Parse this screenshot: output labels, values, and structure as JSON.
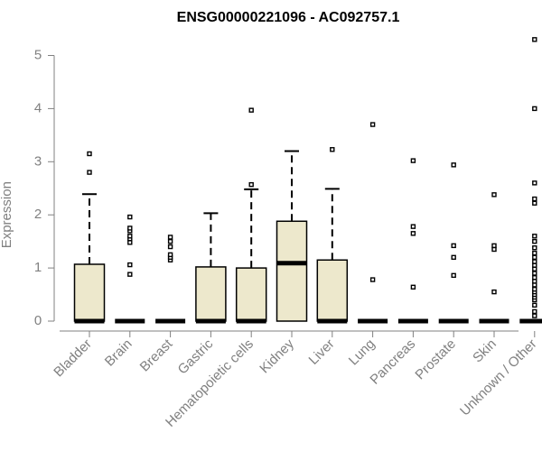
{
  "chart_data": {
    "type": "boxplot",
    "title": "ENSG00000221096 - AC092757.1",
    "ylabel": "Expression",
    "xlabel": "",
    "ylim": [
      0,
      5.3
    ],
    "yticks": [
      0,
      1,
      2,
      3,
      4,
      5
    ],
    "box_fill": "#ede8cc",
    "stroke_color": "#000000",
    "axis_color": "#808080",
    "categories": [
      "Bladder",
      "Brain",
      "Breast",
      "Gastric",
      "Hematopoietic cells",
      "Kidney",
      "Liver",
      "Lung",
      "Pancreas",
      "Prostate",
      "Skin",
      "Unknown / Other"
    ],
    "boxes": [
      {
        "q1": 0,
        "median": 0,
        "q3": 1.07,
        "whisker_low": 0,
        "whisker_high": 2.39,
        "outliers": [
          2.8,
          3.15
        ]
      },
      {
        "q1": 0,
        "median": 0,
        "q3": 0,
        "whisker_low": 0,
        "whisker_high": 0,
        "outliers": [
          0.88,
          1.06,
          1.48,
          1.55,
          1.6,
          1.7,
          1.75,
          1.96
        ]
      },
      {
        "q1": 0,
        "median": 0,
        "q3": 0,
        "whisker_low": 0,
        "whisker_high": 0,
        "outliers": [
          1.15,
          1.2,
          1.25,
          1.4,
          1.5,
          1.58
        ]
      },
      {
        "q1": 0,
        "median": 0,
        "q3": 1.02,
        "whisker_low": 0,
        "whisker_high": 2.03,
        "outliers": []
      },
      {
        "q1": 0,
        "median": 0,
        "q3": 1.0,
        "whisker_low": 0,
        "whisker_high": 2.48,
        "outliers": [
          2.57,
          3.97
        ]
      },
      {
        "q1": 0,
        "median": 1.09,
        "q3": 1.88,
        "whisker_low": 0,
        "whisker_high": 3.2,
        "outliers": []
      },
      {
        "q1": 0,
        "median": 0,
        "q3": 1.15,
        "whisker_low": 0,
        "whisker_high": 2.49,
        "outliers": [
          3.23
        ]
      },
      {
        "q1": 0,
        "median": 0,
        "q3": 0,
        "whisker_low": 0,
        "whisker_high": 0,
        "outliers": [
          0.78,
          3.7
        ]
      },
      {
        "q1": 0,
        "median": 0,
        "q3": 0,
        "whisker_low": 0,
        "whisker_high": 0,
        "outliers": [
          0.64,
          1.65,
          1.78,
          3.02
        ]
      },
      {
        "q1": 0,
        "median": 0,
        "q3": 0,
        "whisker_low": 0,
        "whisker_high": 0,
        "outliers": [
          0.86,
          1.2,
          1.42,
          2.94
        ]
      },
      {
        "q1": 0,
        "median": 0,
        "q3": 0,
        "whisker_low": 0,
        "whisker_high": 0,
        "outliers": [
          0.55,
          1.35,
          1.42,
          2.38
        ]
      },
      {
        "q1": 0,
        "median": 0,
        "q3": 0,
        "whisker_low": 0,
        "whisker_high": 0,
        "outliers": [
          0.1,
          0.18,
          0.3,
          0.4,
          0.45,
          0.5,
          0.55,
          0.6,
          0.68,
          0.75,
          0.82,
          0.9,
          0.98,
          1.05,
          1.12,
          1.2,
          1.28,
          1.38,
          1.5,
          1.6,
          2.22,
          2.3,
          2.6,
          4.0,
          5.3
        ]
      }
    ]
  }
}
